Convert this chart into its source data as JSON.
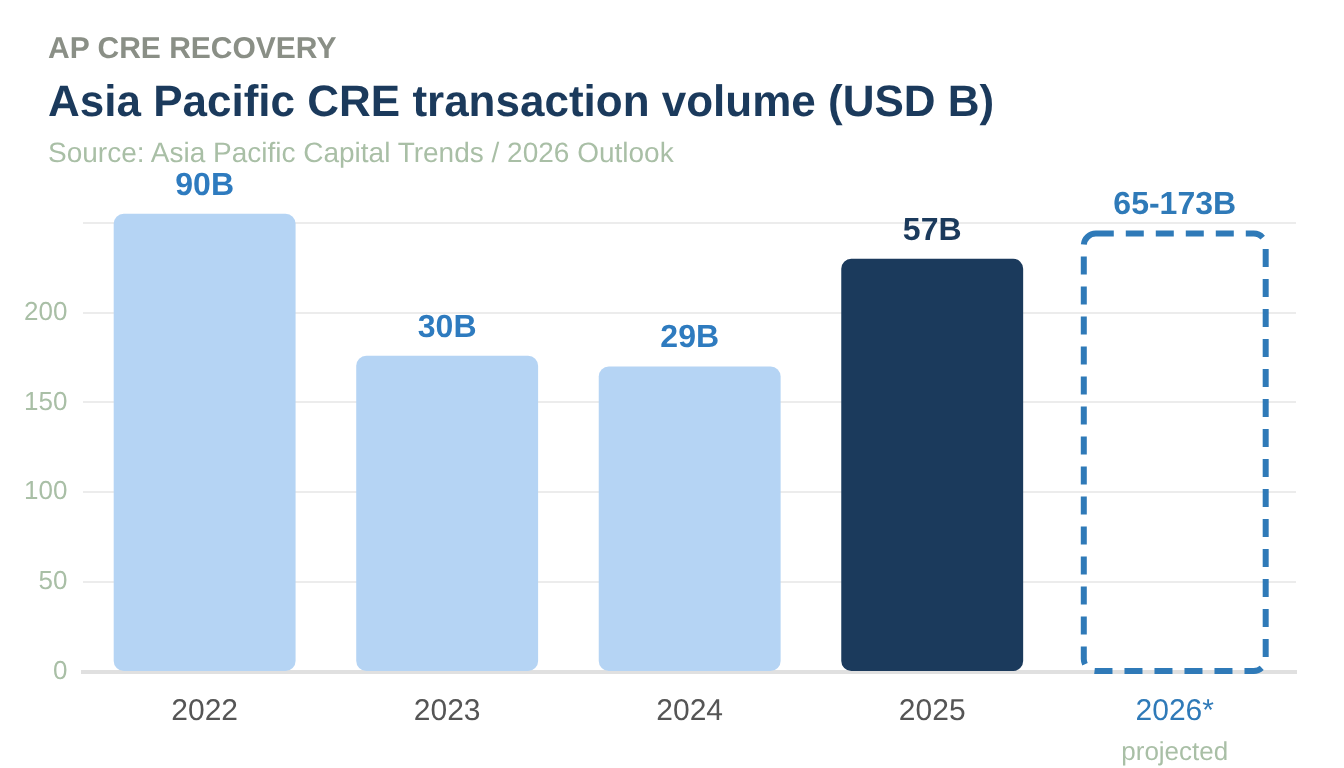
{
  "chart_data": {
    "type": "bar",
    "subtitle": "AP CRE RECOVERY",
    "title": "Asia Pacific CRE transaction volume (USD B)",
    "categories": [
      "2022",
      "2023",
      "2024",
      "2025",
      "2026*"
    ],
    "series": [
      {
        "colors": [
          "#b5d4f4",
          "#b5d4f4",
          "#b5d4f4",
          "#1b3a5c",
          null
        ],
        "values": [
          255,
          176,
          170,
          230,
          null
        ]
      },
      {
        "type": "bar",
        "color": "#2f7ab8",
        "line_style": "dashed",
        "values": [
          null,
          null,
          null,
          null,
          244
        ]
      }
    ],
    "ylim": [
      0,
      256
    ],
    "yticks": [
      0,
      50,
      100,
      150,
      200,
      {
        "value": 250,
        "label": null
      }
    ],
    "grid": "y",
    "legend": false,
    "annotations": [
      "Source: Asia Pacific Capital Trends / 2026 Outlook",
      "projected",
      {
        "text": "90B",
        "x": "2022",
        "y": 255
      },
      {
        "text": "30B",
        "x": "2023",
        "y": 176
      },
      {
        "text": "29B",
        "x": "2024",
        "y": 170
      },
      {
        "text": "57B",
        "x": "2025",
        "y": 230
      },
      {
        "text": "65-173B",
        "x": "2026*",
        "y": 244
      }
    ]
  }
}
